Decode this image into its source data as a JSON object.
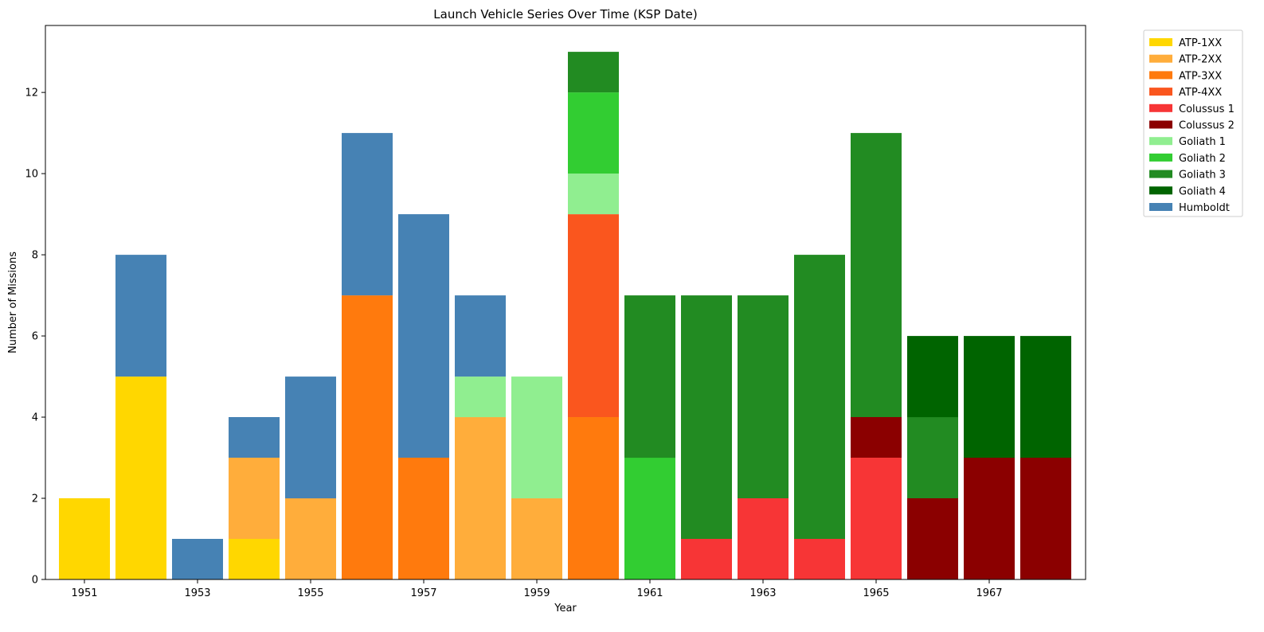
{
  "chart_data": {
    "type": "bar",
    "stacked": true,
    "title": "Launch Vehicle Series Over Time (KSP Date)",
    "xlabel": "Year",
    "ylabel": "Number of Missions",
    "categories": [
      "1951",
      "1952",
      "1953",
      "1954",
      "1955",
      "1956",
      "1957",
      "1958",
      "1959",
      "1960",
      "1961",
      "1962",
      "1963",
      "1964",
      "1965",
      "1966",
      "1967",
      "1968"
    ],
    "xtick_labels": [
      "1951",
      "1953",
      "1955",
      "1957",
      "1959",
      "1961",
      "1963",
      "1965",
      "1967"
    ],
    "yticks": [
      0,
      2,
      4,
      6,
      8,
      10,
      12
    ],
    "ylim": [
      0,
      13.65
    ],
    "grid": false,
    "legend_position": "outside-top-right",
    "series": [
      {
        "name": "ATP-1XX",
        "color": "#FFD700",
        "values": [
          2,
          5,
          0,
          1,
          0,
          0,
          0,
          0,
          0,
          0,
          0,
          0,
          0,
          0,
          0,
          0,
          0,
          0
        ]
      },
      {
        "name": "ATP-2XX",
        "color": "#FFAD3B",
        "values": [
          0,
          0,
          0,
          2,
          2,
          0,
          0,
          4,
          2,
          0,
          0,
          0,
          0,
          0,
          0,
          0,
          0,
          0
        ]
      },
      {
        "name": "ATP-3XX",
        "color": "#FF7A0D",
        "values": [
          0,
          0,
          0,
          0,
          0,
          7,
          3,
          0,
          0,
          4,
          0,
          0,
          0,
          0,
          0,
          0,
          0,
          0
        ]
      },
      {
        "name": "ATP-4XX",
        "color": "#FA561E",
        "values": [
          0,
          0,
          0,
          0,
          0,
          0,
          0,
          0,
          0,
          5,
          0,
          0,
          0,
          0,
          0,
          0,
          0,
          0
        ]
      },
      {
        "name": "Colussus 1",
        "color": "#F73536",
        "values": [
          0,
          0,
          0,
          0,
          0,
          0,
          0,
          0,
          0,
          0,
          0,
          1,
          2,
          1,
          3,
          0,
          0,
          0
        ]
      },
      {
        "name": "Colussus 2",
        "color": "#8B0000",
        "values": [
          0,
          0,
          0,
          0,
          0,
          0,
          0,
          0,
          0,
          0,
          0,
          0,
          0,
          0,
          1,
          2,
          3,
          3
        ]
      },
      {
        "name": "Goliath 1",
        "color": "#90EE90",
        "values": [
          0,
          0,
          0,
          0,
          0,
          0,
          0,
          1,
          3,
          1,
          0,
          0,
          0,
          0,
          0,
          0,
          0,
          0
        ]
      },
      {
        "name": "Goliath 2",
        "color": "#32CD32",
        "values": [
          0,
          0,
          0,
          0,
          0,
          0,
          0,
          0,
          0,
          2,
          3,
          0,
          0,
          0,
          0,
          0,
          0,
          0
        ]
      },
      {
        "name": "Goliath 3",
        "color": "#228B22",
        "values": [
          0,
          0,
          0,
          0,
          0,
          0,
          0,
          0,
          0,
          1,
          4,
          6,
          5,
          7,
          7,
          2,
          0,
          0
        ]
      },
      {
        "name": "Goliath 4",
        "color": "#006400",
        "values": [
          0,
          0,
          0,
          0,
          0,
          0,
          0,
          0,
          0,
          0,
          0,
          0,
          0,
          0,
          0,
          2,
          3,
          3
        ]
      },
      {
        "name": "Humboldt",
        "color": "#4682B4",
        "values": [
          0,
          3,
          1,
          1,
          3,
          4,
          6,
          2,
          0,
          0,
          0,
          0,
          0,
          0,
          0,
          0,
          0,
          0
        ]
      }
    ]
  }
}
